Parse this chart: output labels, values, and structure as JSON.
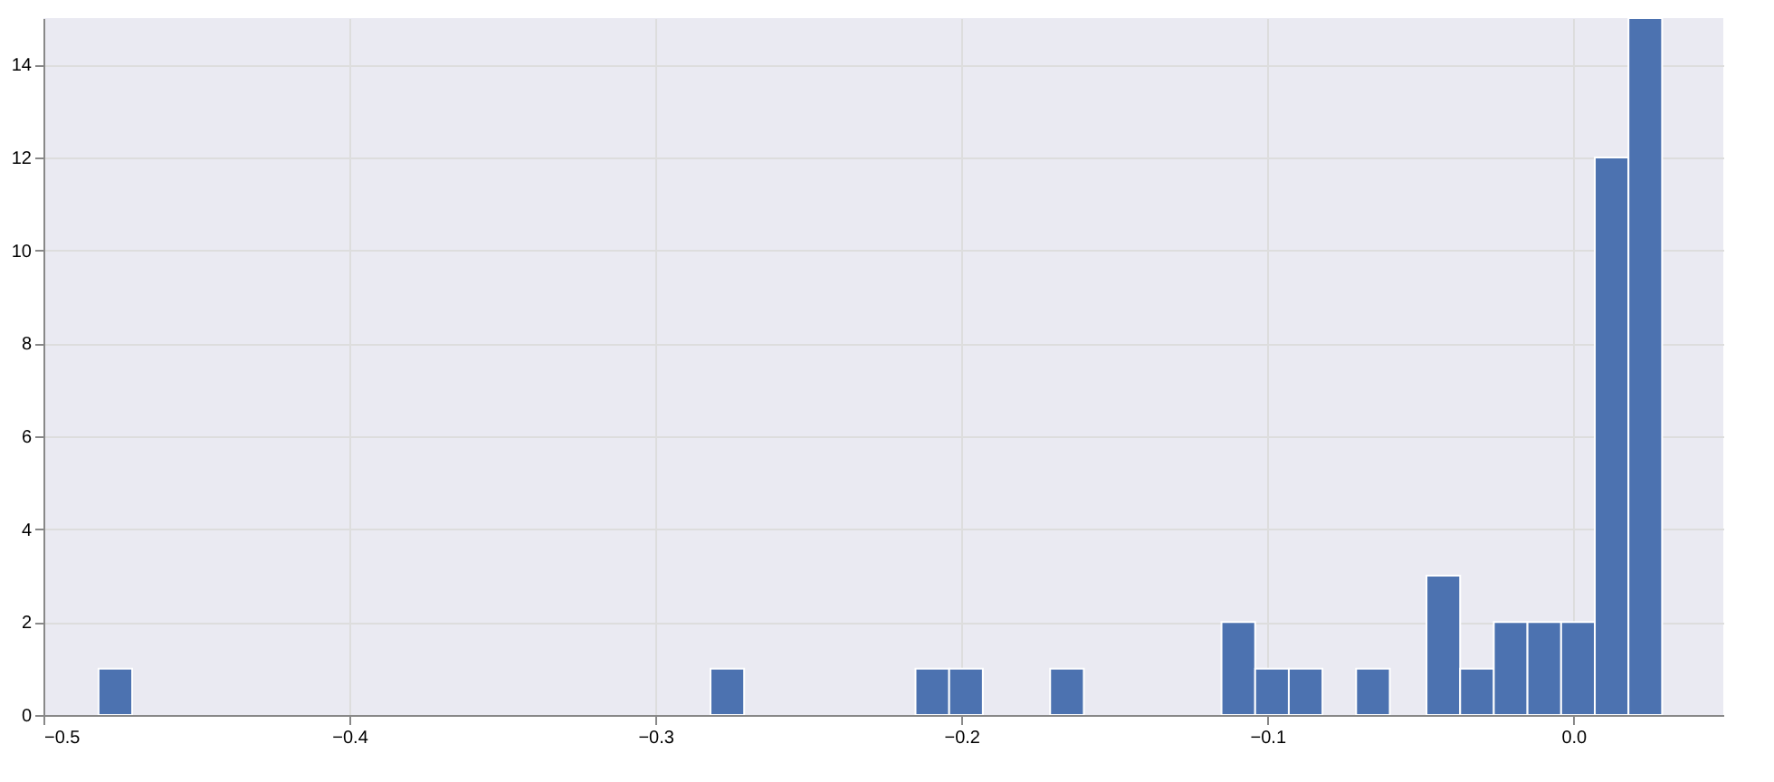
{
  "chart_data": {
    "type": "histogram",
    "bins": [
      -0.482,
      -0.471,
      -0.282,
      -0.271,
      -0.215,
      -0.204,
      -0.193,
      -0.171,
      -0.16,
      -0.115,
      -0.104,
      -0.093,
      -0.082,
      -0.071,
      -0.06,
      -0.048,
      -0.037,
      -0.026,
      -0.015,
      -0.004,
      0.007,
      0.018,
      0.029
    ],
    "values": [
      1,
      0,
      1,
      0,
      1,
      1,
      0,
      1,
      0,
      2,
      1,
      1,
      0,
      1,
      0,
      3,
      1,
      2,
      2,
      2,
      12,
      15
    ],
    "color": "#4c72b0",
    "xlim": [
      -0.5,
      0.049
    ],
    "xticks": [
      -0.5,
      -0.4,
      -0.3,
      -0.2,
      -0.1,
      {
        "value": 0.0,
        "label": "0.0"
      }
    ],
    "ylim": [
      0,
      15
    ],
    "yticks": [
      0,
      2,
      4,
      6,
      8,
      10,
      12,
      14
    ],
    "grid": true
  }
}
